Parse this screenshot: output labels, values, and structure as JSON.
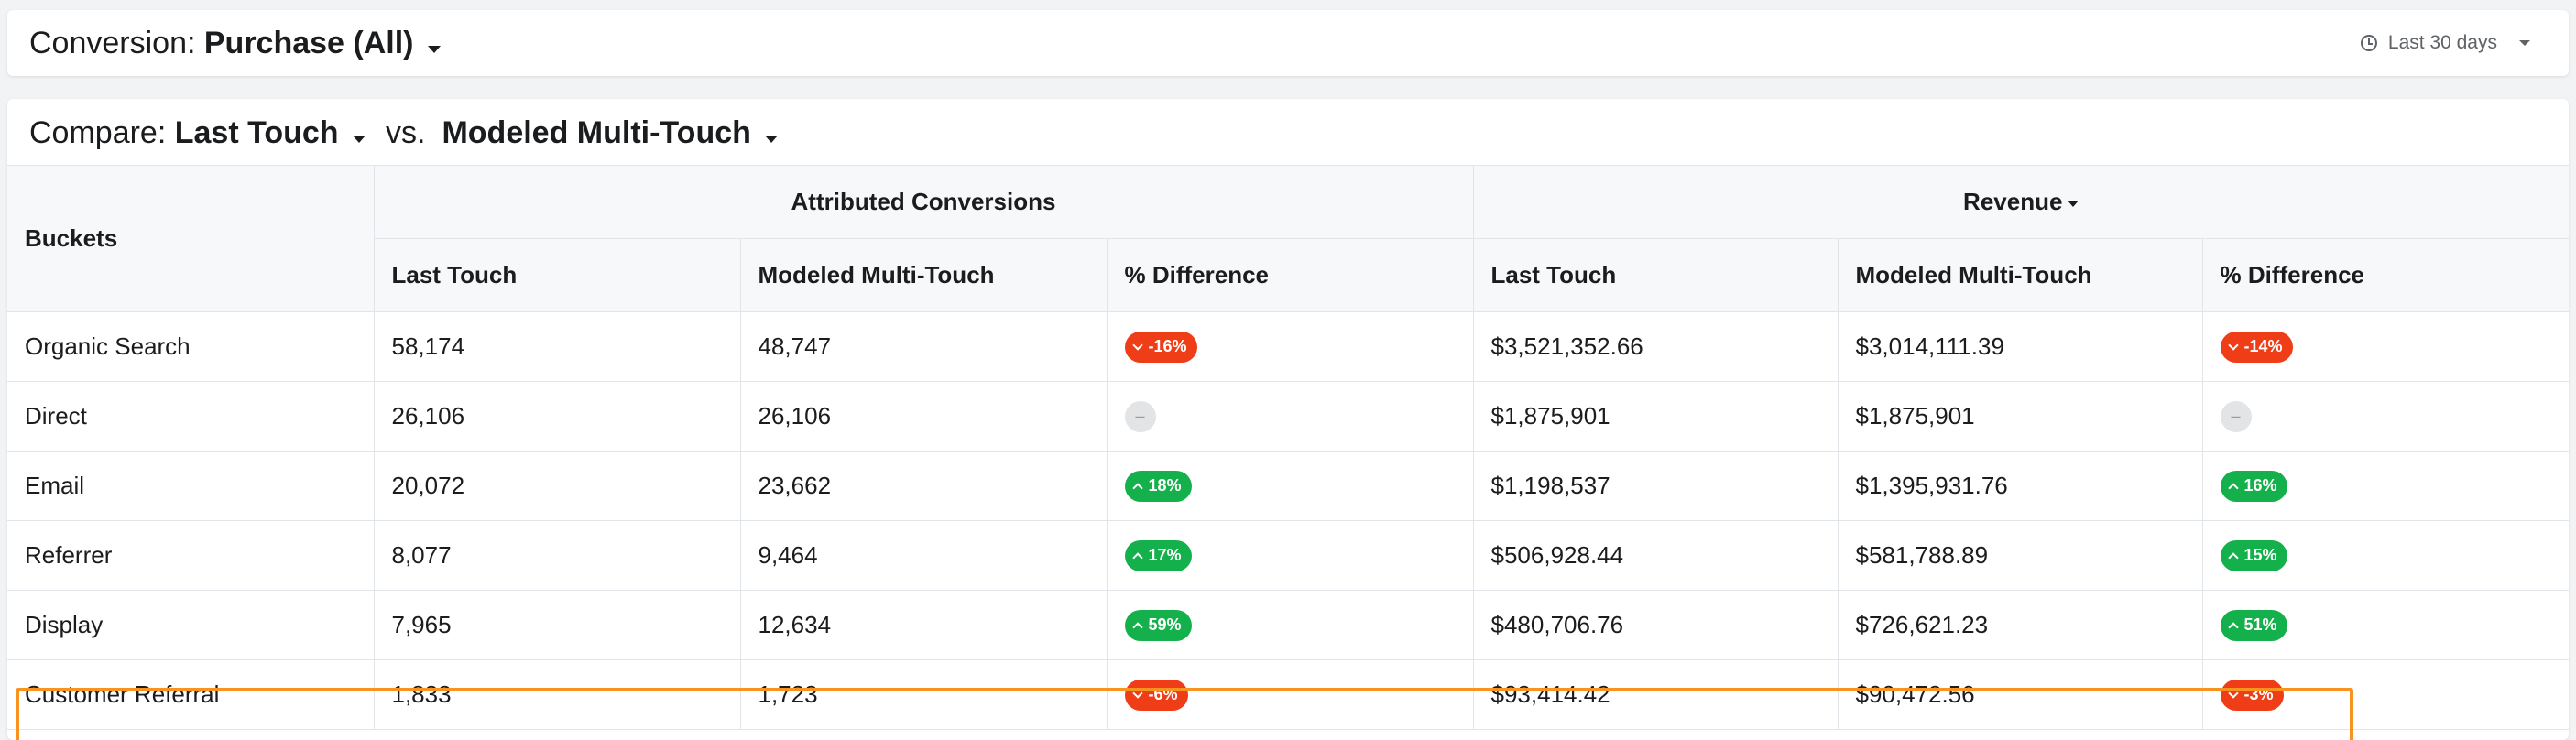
{
  "conversion": {
    "label": "Conversion:",
    "value": "Purchase (All)",
    "date_range": "Last 30 days"
  },
  "compare": {
    "label": "Compare:",
    "model_a": "Last Touch",
    "vs": "vs.",
    "model_b": "Modeled Multi-Touch"
  },
  "table": {
    "buckets_header": "Buckets",
    "group_attributed": "Attributed Conversions",
    "group_revenue": "Revenue",
    "columns": [
      "Last Touch",
      "Modeled Multi-Touch",
      "% Difference",
      "Last Touch",
      "Modeled Multi-Touch",
      "% Difference"
    ],
    "rows": [
      {
        "bucket": "Organic Search",
        "conv_last": "58,174",
        "conv_multi": "48,747",
        "conv_diff": "-16%",
        "conv_dir": "down",
        "rev_last": "$3,521,352.66",
        "rev_multi": "$3,014,111.39",
        "rev_diff": "-14%",
        "rev_dir": "down"
      },
      {
        "bucket": "Direct",
        "conv_last": "26,106",
        "conv_multi": "26,106",
        "conv_diff": "–",
        "conv_dir": "neutral",
        "rev_last": "$1,875,901",
        "rev_multi": "$1,875,901",
        "rev_diff": "–",
        "rev_dir": "neutral"
      },
      {
        "bucket": "Email",
        "conv_last": "20,072",
        "conv_multi": "23,662",
        "conv_diff": "18%",
        "conv_dir": "up",
        "rev_last": "$1,198,537",
        "rev_multi": "$1,395,931.76",
        "rev_diff": "16%",
        "rev_dir": "up"
      },
      {
        "bucket": "Referrer",
        "conv_last": "8,077",
        "conv_multi": "9,464",
        "conv_diff": "17%",
        "conv_dir": "up",
        "rev_last": "$506,928.44",
        "rev_multi": "$581,788.89",
        "rev_diff": "15%",
        "rev_dir": "up"
      },
      {
        "bucket": "Display",
        "conv_last": "7,965",
        "conv_multi": "12,634",
        "conv_diff": "59%",
        "conv_dir": "up",
        "rev_last": "$480,706.76",
        "rev_multi": "$726,621.23",
        "rev_diff": "51%",
        "rev_dir": "up"
      },
      {
        "bucket": "Customer Referral",
        "conv_last": "1,833",
        "conv_multi": "1,723",
        "conv_diff": "-6%",
        "conv_dir": "down",
        "rev_last": "$93,414.42",
        "rev_multi": "$90,472.56",
        "rev_diff": "-3%",
        "rev_dir": "down"
      }
    ]
  },
  "colors": {
    "badge_down": "#ee3d17",
    "badge_up": "#14b04b",
    "highlight_outline": "#f7931e"
  }
}
